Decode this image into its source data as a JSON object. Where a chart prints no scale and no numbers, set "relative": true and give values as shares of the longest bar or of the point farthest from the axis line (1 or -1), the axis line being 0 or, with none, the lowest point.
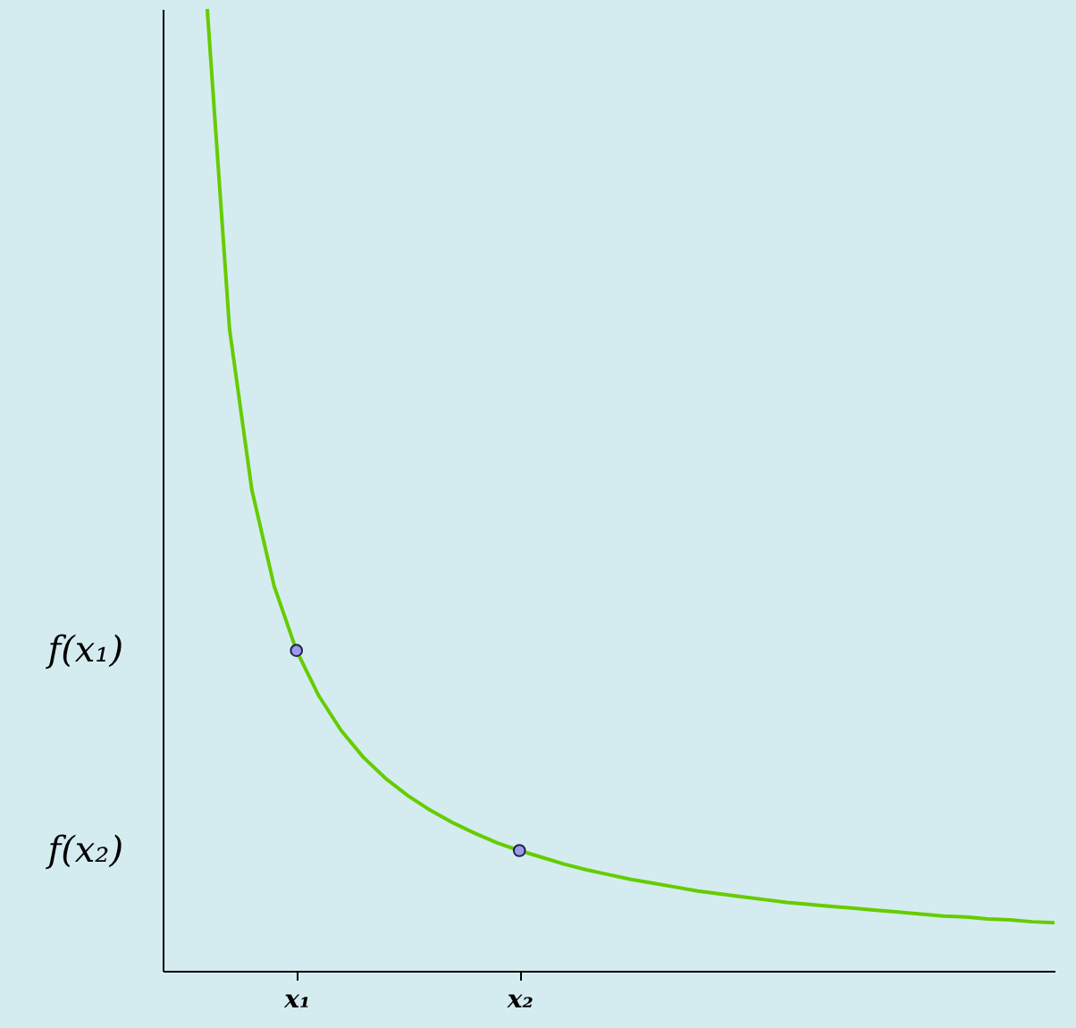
{
  "chart_data": {
    "type": "line",
    "relative": true,
    "grid": false,
    "categories": [
      null,
      null,
      null,
      null,
      null,
      null,
      "x₁",
      null,
      null,
      null,
      null,
      null,
      null,
      null,
      null,
      null,
      "x₂",
      null,
      null,
      null,
      null,
      null,
      null,
      null,
      null,
      null,
      null,
      null,
      null,
      null,
      null,
      null,
      null,
      null,
      null,
      null,
      null,
      null,
      null,
      null,
      null
    ],
    "series": [
      {
        "color": "#66cc00",
        "marker": "none",
        "values": [
          null,
          null,
          1,
          0.667,
          0.5,
          0.4,
          0.333,
          0.286,
          0.25,
          0.222,
          0.2,
          0.182,
          0.167,
          0.154,
          0.143,
          0.133,
          0.125,
          0.118,
          0.111,
          0.105,
          0.1,
          0.095,
          0.091,
          0.087,
          0.083,
          0.08,
          0.077,
          0.074,
          0.071,
          0.069,
          0.067,
          0.065,
          0.063,
          0.061,
          0.059,
          0.057,
          0.056,
          0.054,
          0.053,
          0.051,
          0.05
        ]
      },
      {
        "type": "scatter",
        "color": "#9999ee",
        "marker": "circle",
        "values": [
          null,
          null,
          null,
          null,
          null,
          null,
          0.333,
          null,
          null,
          null,
          null,
          null,
          null,
          null,
          null,
          null,
          0.125,
          null,
          null,
          null,
          null,
          null,
          null,
          null,
          null,
          null,
          null,
          null,
          null,
          null,
          null,
          null,
          null,
          null,
          null,
          null,
          null,
          null,
          null,
          null,
          null
        ]
      }
    ],
    "annotations": [
      "f(x₁)",
      "f(x₂)"
    ]
  }
}
